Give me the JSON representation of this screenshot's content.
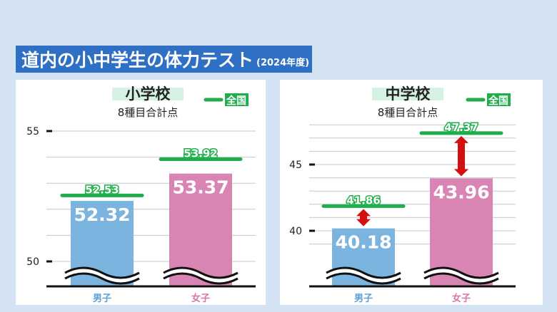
{
  "title": {
    "main": "道内の小中学生の体力テスト",
    "sub": "(2024年度)"
  },
  "legend": {
    "national_label": "全国",
    "national_color": "#1fae4b"
  },
  "colors": {
    "boys": "#7cb4e0",
    "girls": "#d985b4",
    "boys_label": "#5f9fd4",
    "girls_label": "#d576ab",
    "arrow": "#d40f0f",
    "highlight": "#d5f2e3"
  },
  "chart_data": [
    {
      "type": "bar",
      "title": "小学校",
      "subtitle": "8種目合計点",
      "categories": [
        "男子",
        "女子"
      ],
      "values": [
        52.32,
        53.37
      ],
      "value_labels": [
        "52.32",
        "53.37"
      ],
      "national": [
        52.53,
        53.92
      ],
      "national_labels": [
        "52.53",
        "53.92"
      ],
      "yticks": [
        "50",
        "55"
      ],
      "ytick_values": [
        50,
        55
      ],
      "ylim": [
        50,
        55
      ],
      "grid": true,
      "axis_break": true,
      "legend": "top-right"
    },
    {
      "type": "bar",
      "title": "中学校",
      "subtitle": "8種目合計点",
      "categories": [
        "男子",
        "女子"
      ],
      "values": [
        40.18,
        43.96
      ],
      "value_labels": [
        "40.18",
        "43.96"
      ],
      "national": [
        41.86,
        47.37
      ],
      "national_labels": [
        "41.86",
        "47.37"
      ],
      "yticks": [
        "40",
        "45"
      ],
      "ytick_values": [
        40,
        45
      ],
      "ylim": [
        40,
        48
      ],
      "grid": true,
      "axis_break": true,
      "legend": "top-right"
    }
  ]
}
